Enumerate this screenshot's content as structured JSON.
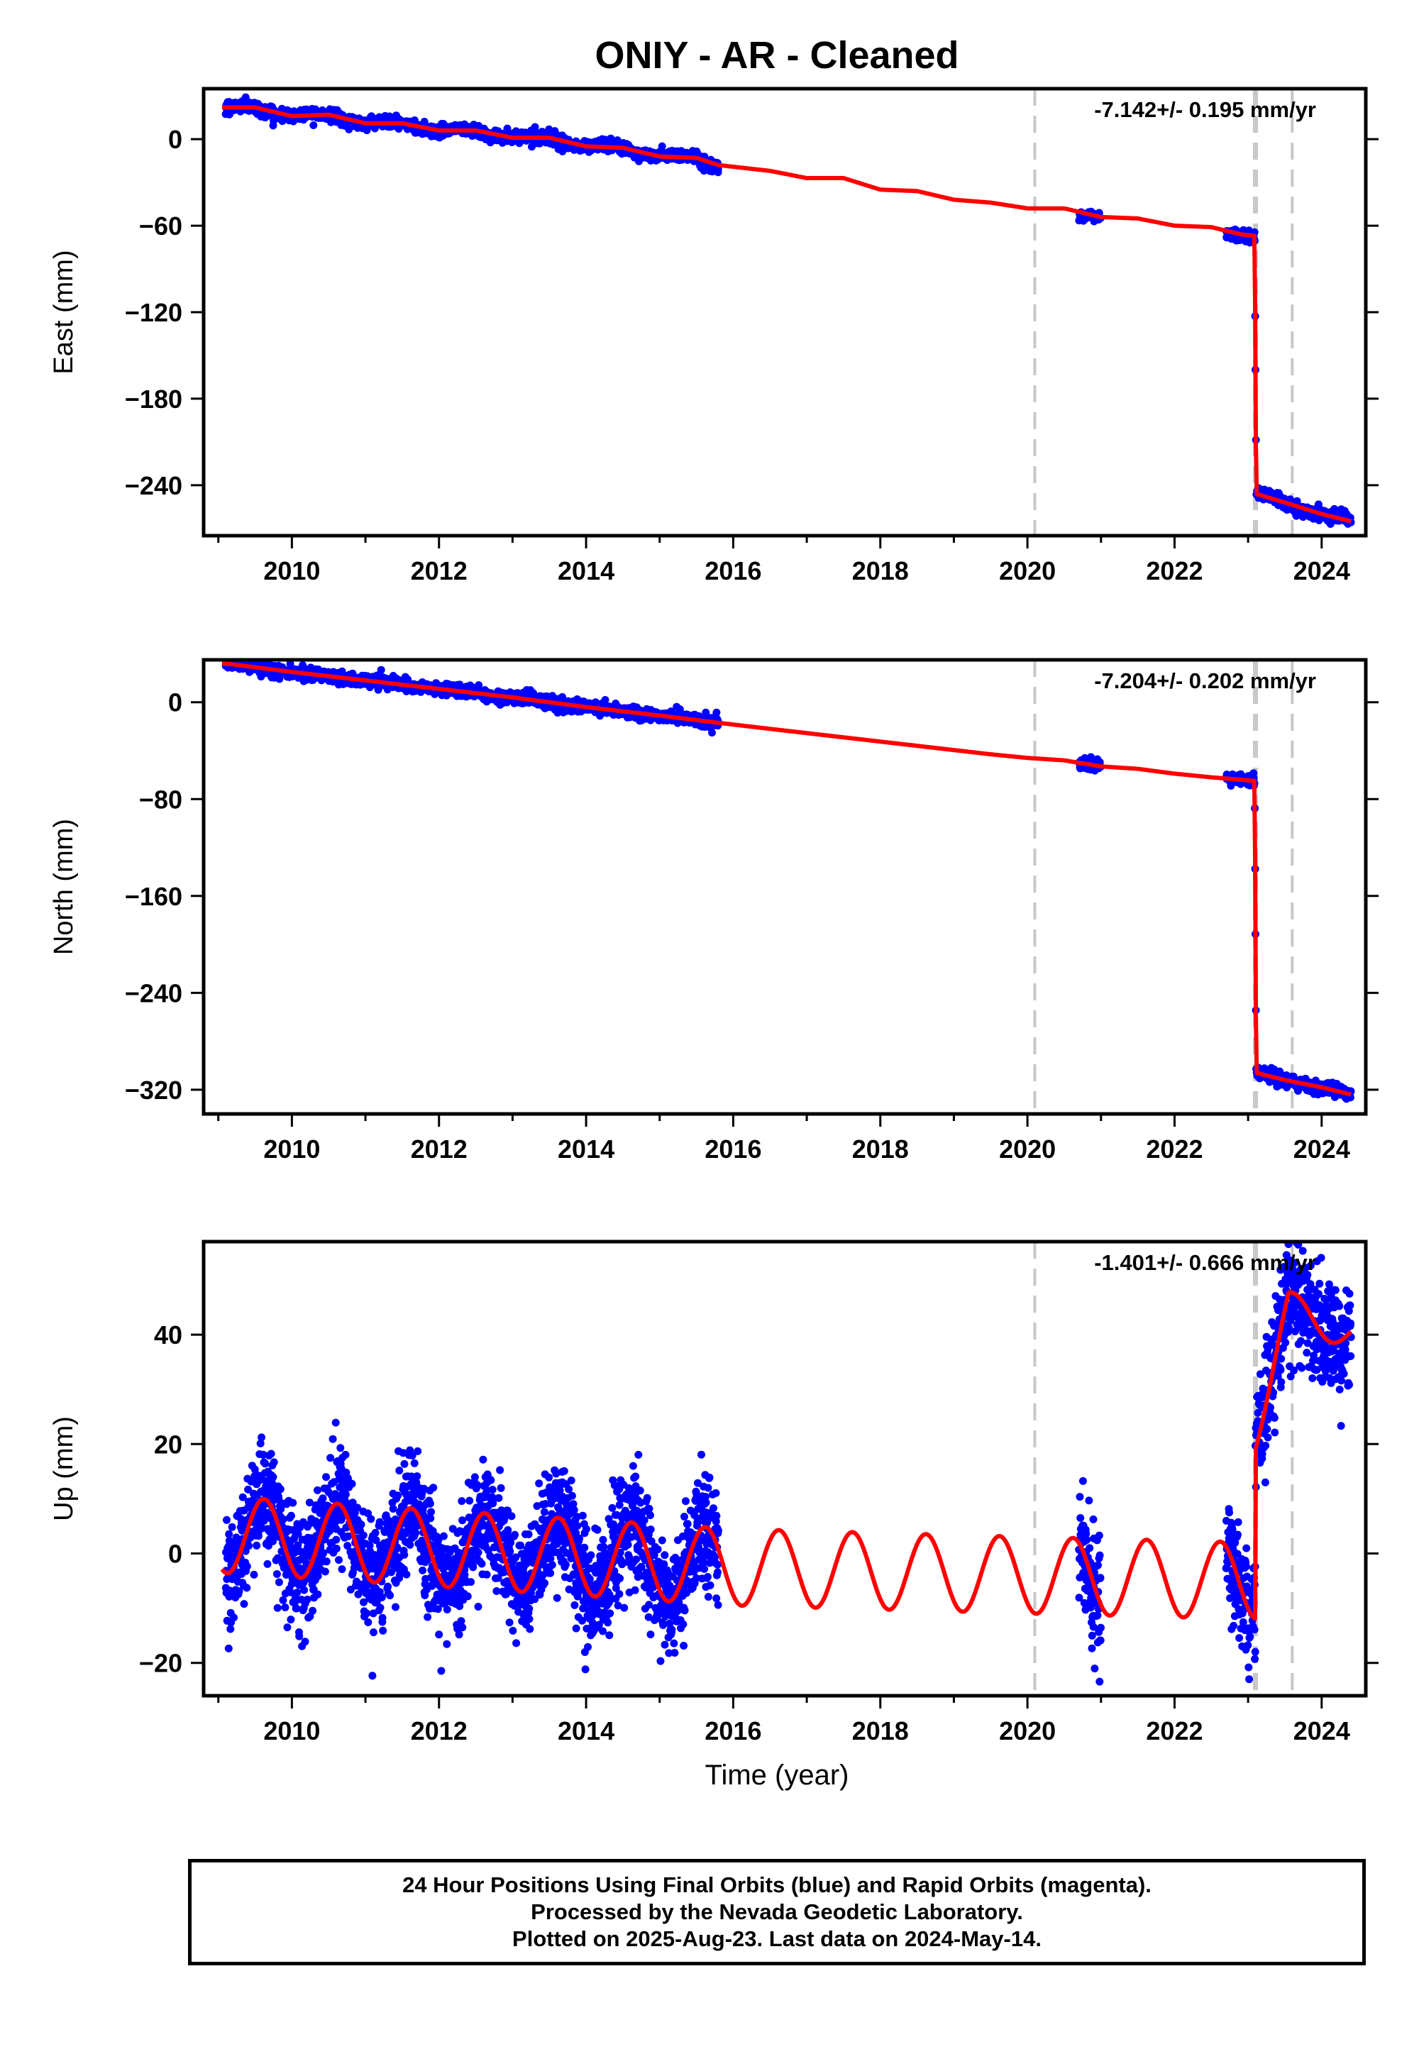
{
  "title": "ONIY  - AR - Cleaned",
  "xlabel": "Time (year)",
  "colors": {
    "observed": "#0000ff",
    "model": "#ff0000",
    "event_line": "#c8c8c8"
  },
  "footer": {
    "line1": "24 Hour Positions Using Final Orbits (blue) and Rapid Orbits (magenta).",
    "line2": "Processed by the Nevada Geodetic Laboratory.",
    "line3": "Plotted on 2025-Aug-23. Last data on 2024-May-14."
  },
  "chart_data": [
    {
      "type": "scatter",
      "component": "east",
      "ylabel": "East (mm)",
      "rate_label": "-7.142+/- 0.195 mm/yr",
      "rate": -7.142,
      "xlim": [
        2008.8,
        2024.6
      ],
      "ylim": [
        -275,
        35
      ],
      "xticks": [
        2010,
        2012,
        2014,
        2016,
        2018,
        2020,
        2022,
        2024
      ],
      "yticks": [
        0,
        -60,
        -120,
        -180,
        -240
      ],
      "event_lines": [
        2020.1,
        2023.1,
        2023.6
      ],
      "data_spans": [
        [
          2009.1,
          2015.8
        ],
        [
          2020.7,
          2021.0
        ],
        [
          2022.7,
          2023.1
        ],
        [
          2023.1,
          2024.4
        ]
      ],
      "model": {
        "x": [
          2009.1,
          2009.5,
          2010.0,
          2010.5,
          2011.0,
          2011.5,
          2012.0,
          2012.5,
          2013.0,
          2013.5,
          2014.0,
          2014.5,
          2015.0,
          2015.5,
          2015.8,
          2016.5,
          2017.0,
          2017.5,
          2018.0,
          2018.5,
          2019.0,
          2019.5,
          2020.0,
          2020.5,
          2021.0,
          2021.5,
          2022.0,
          2022.5,
          2022.9,
          2023.09,
          2023.11,
          2023.5,
          2024.0,
          2024.4
        ],
        "y": [
          22,
          22,
          16,
          17,
          11,
          11,
          6,
          6,
          1,
          1,
          -5,
          -6,
          -12,
          -13,
          -18,
          -22,
          -27,
          -27,
          -35,
          -36,
          -42,
          -44,
          -48,
          -48,
          -54,
          -55,
          -60,
          -61,
          -66,
          -67,
          -246,
          -252,
          -260,
          -265
        ]
      },
      "noise": 2.0,
      "seasonal_amp": 1.5
    },
    {
      "type": "scatter",
      "component": "north",
      "ylabel": "North (mm)",
      "rate_label": "-7.204+/- 0.202 mm/yr",
      "rate": -7.204,
      "xlim": [
        2008.8,
        2024.6
      ],
      "ylim": [
        -340,
        35
      ],
      "xticks": [
        2010,
        2012,
        2014,
        2016,
        2018,
        2020,
        2022,
        2024
      ],
      "yticks": [
        0,
        -80,
        -160,
        -240,
        -320
      ],
      "event_lines": [
        2020.1,
        2023.1,
        2023.6
      ],
      "data_spans": [
        [
          2009.1,
          2015.8
        ],
        [
          2020.7,
          2021.0
        ],
        [
          2022.7,
          2023.1
        ],
        [
          2023.1,
          2024.4
        ]
      ],
      "model": {
        "x": [
          2009.1,
          2010.0,
          2011.0,
          2012.0,
          2013.0,
          2014.0,
          2015.0,
          2015.8,
          2016.5,
          2017.5,
          2018.5,
          2019.5,
          2020.0,
          2020.5,
          2021.0,
          2021.5,
          2022.0,
          2022.5,
          2022.9,
          2023.09,
          2023.11,
          2023.5,
          2024.0,
          2024.4
        ],
        "y": [
          32,
          25,
          18,
          11,
          4,
          -4,
          -11,
          -17,
          -22,
          -29,
          -36,
          -43,
          -46,
          -48,
          -53,
          -55,
          -59,
          -62,
          -64,
          -65,
          -306,
          -312,
          -318,
          -324
        ]
      },
      "noise": 2.5,
      "seasonal_amp": 0.8
    },
    {
      "type": "scatter",
      "component": "up",
      "ylabel": "Up (mm)",
      "rate_label": "-1.401+/- 0.666 mm/yr",
      "rate": -1.401,
      "xlim": [
        2008.8,
        2024.6
      ],
      "ylim": [
        -26,
        57
      ],
      "xticks": [
        2010,
        2012,
        2014,
        2016,
        2018,
        2020,
        2022,
        2024
      ],
      "yticks": [
        40,
        20,
        0,
        -20
      ],
      "event_lines": [
        2020.1,
        2023.1,
        2023.6
      ],
      "data_spans": [
        [
          2009.1,
          2015.8
        ],
        [
          2020.7,
          2021.0
        ],
        [
          2022.7,
          2023.1
        ],
        [
          2023.1,
          2024.4
        ]
      ],
      "seasonal_model": {
        "pre_offset": [
          [
            2009.0,
            3.5
          ],
          [
            2016.0,
            -2.5
          ],
          [
            2020.1,
            -4.0
          ],
          [
            2023.1,
            -5.0
          ]
        ],
        "amplitude": 7.0,
        "peak_phase": 0.62,
        "jump_at": 2023.1,
        "post_trend": [
          [
            2023.1,
            22.0
          ],
          [
            2023.55,
            45.0
          ],
          [
            2024.4,
            40.0
          ]
        ],
        "post_amplitude": 6.0
      },
      "noise": 5.0
    }
  ]
}
